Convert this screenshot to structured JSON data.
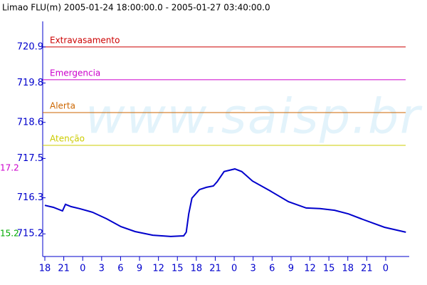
{
  "chart_data": {
    "type": "line",
    "title": "Limao FLU(m) 2005-01-24 18:00:00.0 - 2005-01-27 03:40:00.0",
    "watermark": "www.saisp.br",
    "x": [
      0,
      1.35,
      2.8,
      3.27,
      4.17,
      5.5,
      7.55,
      9.8,
      12.06,
      14.3,
      17.1,
      19.95,
      22.0,
      22.4,
      22.8,
      23.3,
      24.5,
      25.6,
      26.7,
      27.3,
      28.4,
      30.1,
      31.2,
      32.9,
      35.7,
      38.6,
      41.4,
      43.6,
      45.9,
      48.1,
      50.4,
      53.8,
      57.2
    ],
    "values": [
      716.07,
      716.01,
      715.9,
      716.1,
      716.03,
      715.97,
      715.86,
      715.66,
      715.42,
      715.27,
      715.16,
      715.12,
      715.14,
      715.25,
      715.81,
      716.29,
      716.55,
      716.62,
      716.66,
      716.79,
      717.1,
      717.18,
      717.1,
      716.81,
      716.51,
      716.18,
      715.99,
      715.97,
      715.92,
      715.81,
      715.64,
      715.4,
      715.25
    ],
    "color": "#0000cc",
    "xlim": [
      0,
      57.67
    ],
    "xticks": [
      {
        "value": 0,
        "label": "18"
      },
      {
        "value": 3,
        "label": "21"
      },
      {
        "value": 6,
        "label": "0"
      },
      {
        "value": 9,
        "label": "3"
      },
      {
        "value": 12,
        "label": "6"
      },
      {
        "value": 15,
        "label": "9"
      },
      {
        "value": 18,
        "label": "12"
      },
      {
        "value": 21,
        "label": "15"
      },
      {
        "value": 24,
        "label": "18"
      },
      {
        "value": 27,
        "label": "21"
      },
      {
        "value": 30,
        "label": "0"
      },
      {
        "value": 33,
        "label": "3"
      },
      {
        "value": 36,
        "label": "6"
      },
      {
        "value": 39,
        "label": "9"
      },
      {
        "value": 42,
        "label": "12"
      },
      {
        "value": 45,
        "label": "15"
      },
      {
        "value": 48,
        "label": "18"
      },
      {
        "value": 51,
        "label": "21"
      },
      {
        "value": 54,
        "label": "0"
      }
    ],
    "ylim": [
      714.51,
      721.68
    ],
    "yticks": [
      720.9,
      719.8,
      718.6,
      717.5,
      716.3,
      715.2
    ],
    "thresholds": [
      {
        "label": "Extravasamento",
        "value": 720.9,
        "color": "#cc0000"
      },
      {
        "label": "Emergencia",
        "value": 719.9,
        "color": "#cc00cc"
      },
      {
        "label": "Alerta",
        "value": 718.9,
        "color": "#cc6600"
      },
      {
        "label": "Atenção",
        "value": 717.9,
        "color": "#cccc00"
      }
    ],
    "extremes": [
      {
        "label": "17.2",
        "value": 717.2,
        "color": "#cc00cc"
      },
      {
        "label": "15.2",
        "value": 715.2,
        "color": "#00aa00"
      }
    ]
  }
}
